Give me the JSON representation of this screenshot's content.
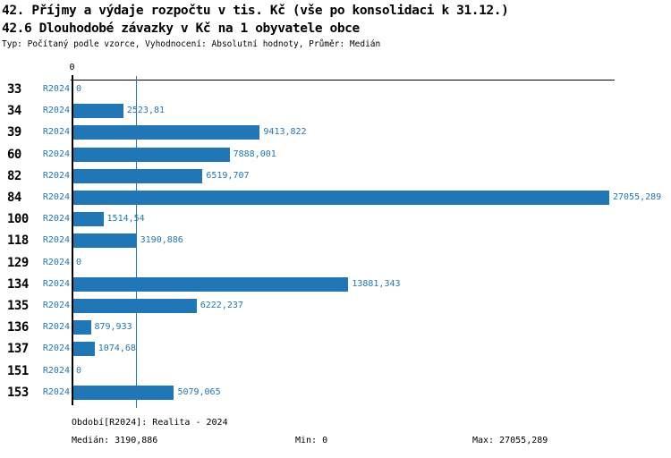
{
  "header": {
    "title_line1": "42. Příjmy a výdaje rozpočtu v tis. Kč (vše po konsolidaci k 31.12.)",
    "title_line2": "42.6 Dlouhodobé závazky v Kč na 1 obyvatele obce",
    "meta_line": "Typ: Počítaný podle vzorce, Vyhodnocení: Absolutní hodnoty, Průměr: Medián"
  },
  "chart_data": {
    "type": "bar",
    "orientation": "horizontal",
    "title": "42.6 Dlouhodobé závazky v Kč na 1 obyvatele obce",
    "categories": [
      "33",
      "34",
      "39",
      "60",
      "82",
      "84",
      "100",
      "118",
      "129",
      "134",
      "135",
      "136",
      "137",
      "151",
      "153"
    ],
    "series_period_label": "R2024",
    "values": [
      0,
      2523.81,
      9413.822,
      7888.001,
      6519.707,
      27055.289,
      1514.54,
      3190.886,
      0,
      13881.343,
      6222.237,
      879.933,
      1074.68,
      0,
      5079.065
    ],
    "value_labels": [
      "0",
      "2523,81",
      "9413,822",
      "7888,001",
      "6519,707",
      "27055,289",
      "1514,54",
      "3190,886",
      "0",
      "13881,343",
      "6222,237",
      "879,933",
      "1074,68",
      "0",
      "5079,065"
    ],
    "value_axis": {
      "min": 0,
      "max": 27055.289,
      "zero_tick_label": "0"
    },
    "median": 3190.886,
    "legend_position": "none",
    "grid": false,
    "colors": {
      "bar": "#2176b5",
      "blue_text": "#2176b5",
      "median_line": "#2176b5",
      "axis": "#000000"
    }
  },
  "footer": {
    "period_line": "Období[R2024]: Realita - 2024",
    "median_line": "Medián: 3190,886",
    "min_line": "Min: 0",
    "max_line": "Max: 27055,289"
  }
}
